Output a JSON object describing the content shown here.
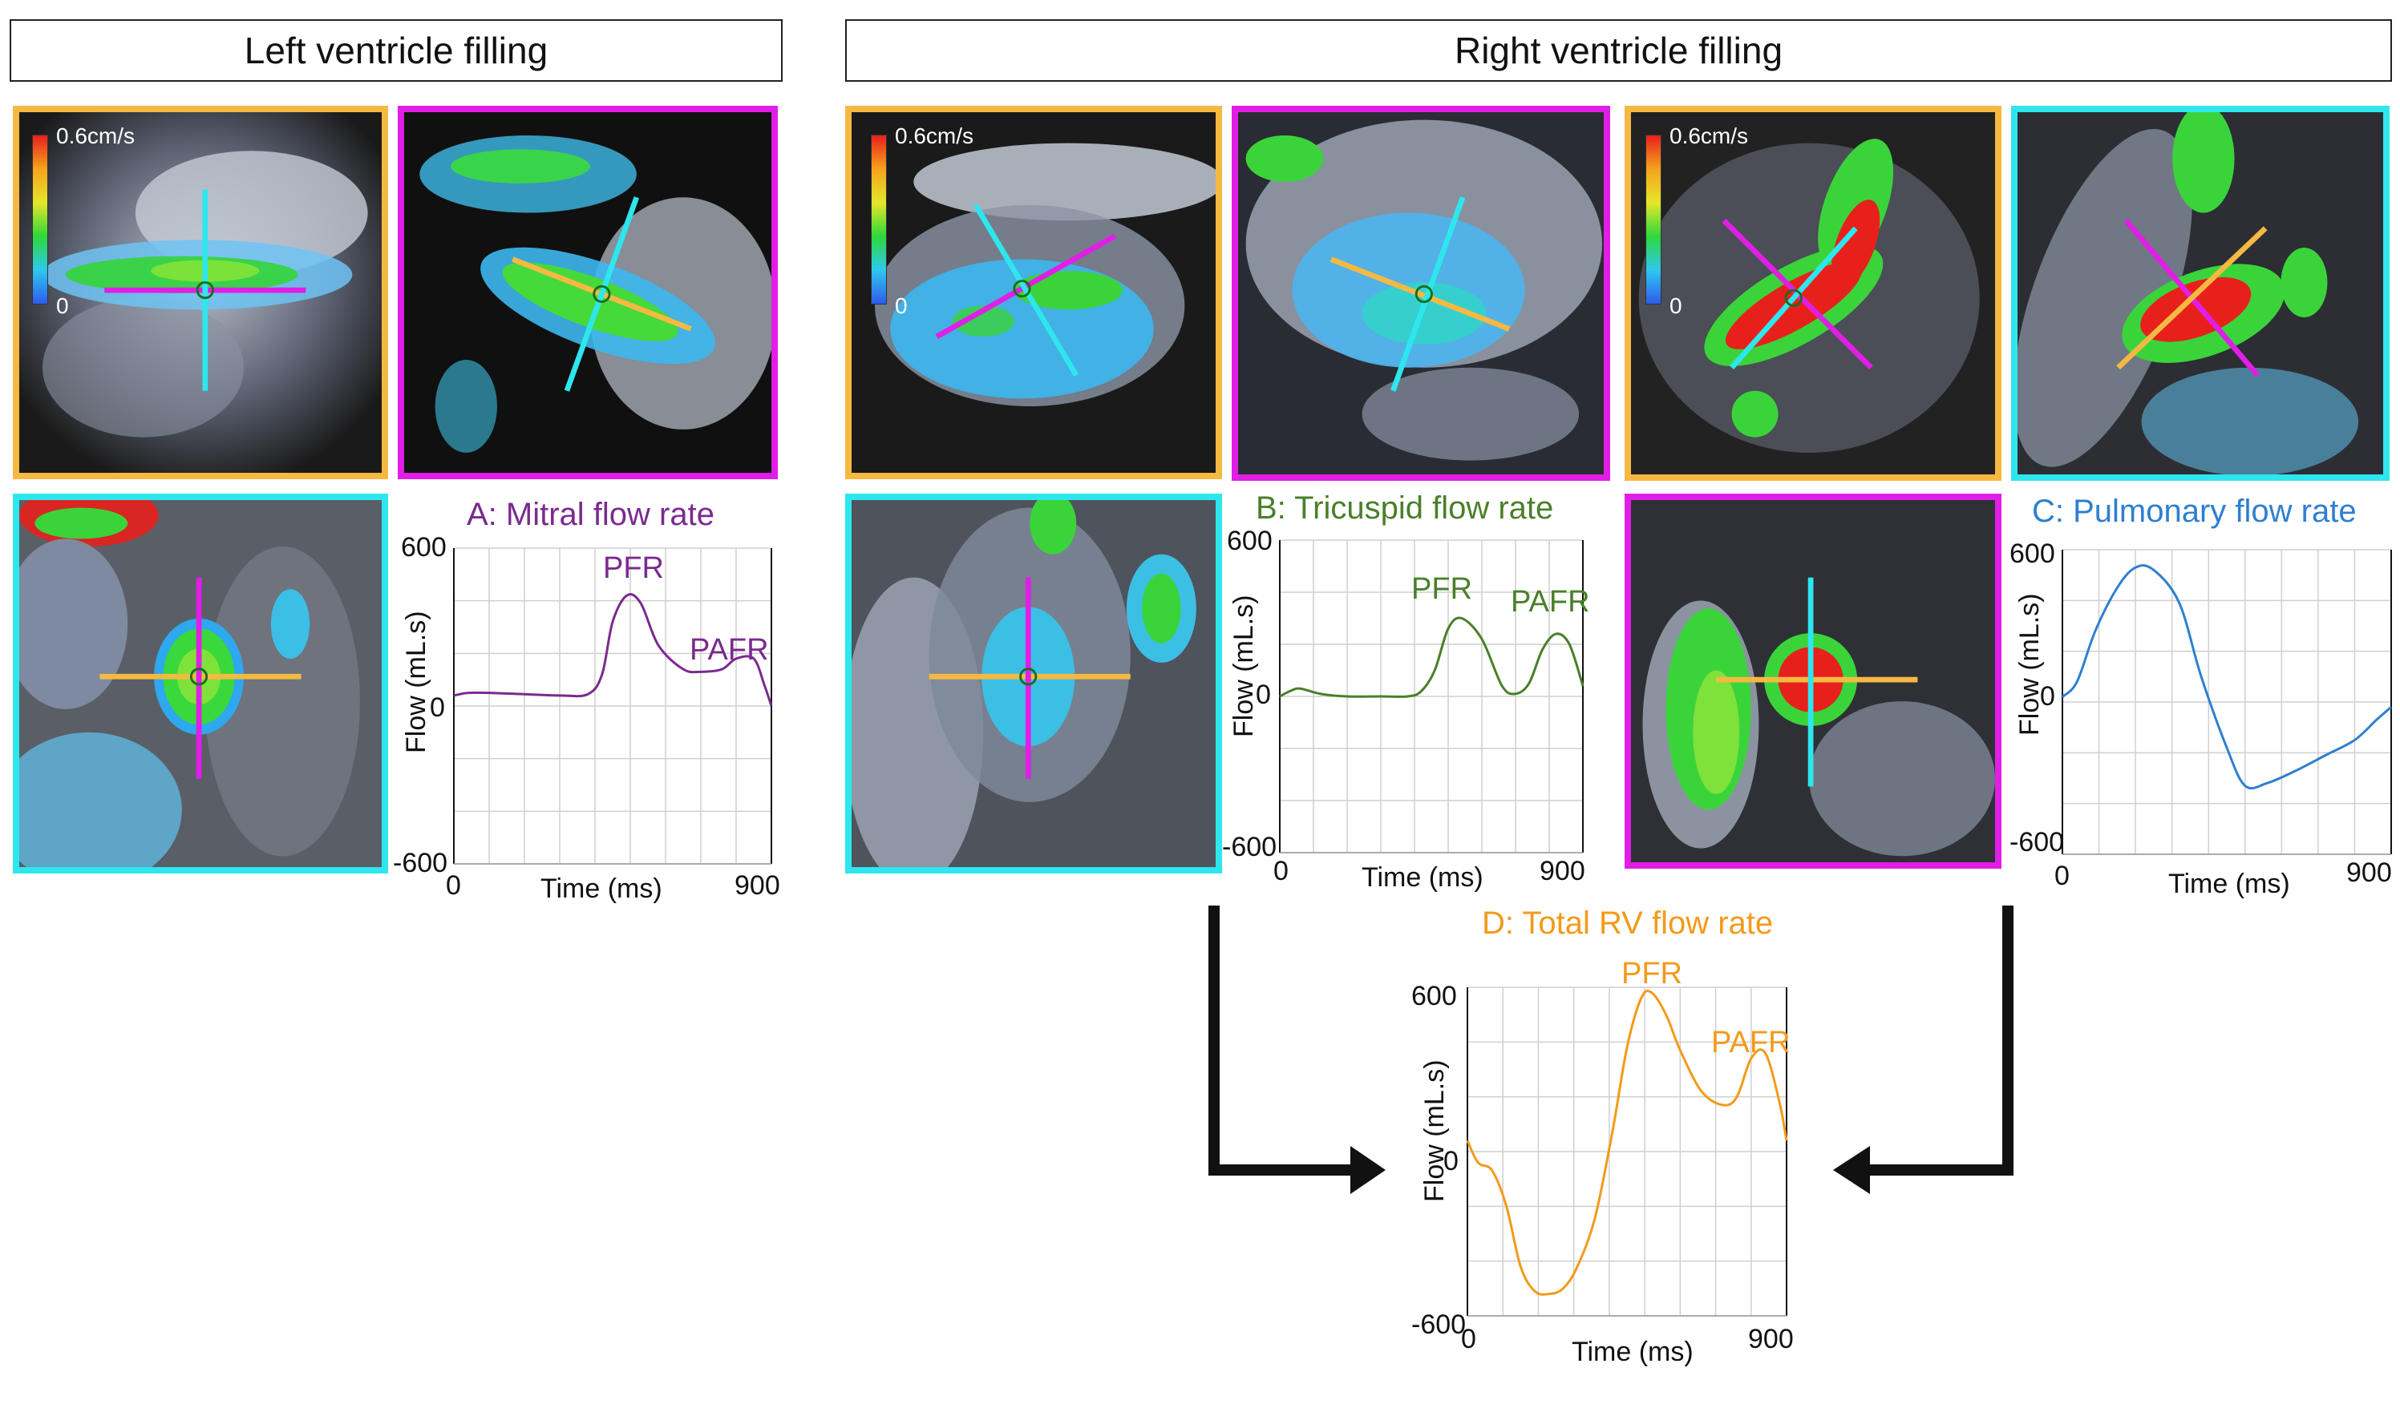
{
  "headers": {
    "left": "Left ventricle filling",
    "right": "Right ventricle filling"
  },
  "colors": {
    "orange_frame": "#f5b942",
    "magenta_frame": "#e11ee6",
    "cyan_frame": "#2ee6ee",
    "mitral": "#7b2a8f",
    "tricuspid": "#4a7f2a",
    "pulmonary": "#2e7fd1",
    "total_rv": "#f39a1a"
  },
  "colorbar": {
    "max": "0.6cm/s",
    "min": "0"
  },
  "graphs": {
    "A": {
      "title": "A: Mitral flow rate",
      "ymax": "600",
      "yzero": "0",
      "ymin": "-600",
      "xmin": "0",
      "xmax": "900",
      "xlabel": "Time (ms)",
      "ylabel": "Flow (mL.s)",
      "peaks": [
        "PFR",
        "PAFR"
      ]
    },
    "B": {
      "title": "B: Tricuspid flow rate",
      "ymax": "600",
      "yzero": "0",
      "ymin": "-600",
      "xmin": "0",
      "xmax": "900",
      "xlabel": "Time (ms)",
      "ylabel": "Flow (mL.s)",
      "peaks": [
        "PFR",
        "PAFR"
      ]
    },
    "C": {
      "title": "C: Pulmonary flow rate",
      "ymax": "600",
      "yzero": "0",
      "ymin": "-600",
      "xmin": "0",
      "xmax": "900",
      "xlabel": "Time (ms)",
      "ylabel": "Flow (mL.s)"
    },
    "D": {
      "title": "D: Total RV flow rate",
      "ymax": "600",
      "yzero": "0",
      "ymin": "-600",
      "xmin": "0",
      "xmax": "900",
      "xlabel": "Time (ms)",
      "ylabel": "Flow (mL.s)",
      "peaks": [
        "PFR",
        "PAFR"
      ]
    }
  },
  "chart_data": [
    {
      "type": "line",
      "title": "A: Mitral flow rate",
      "xlabel": "Time (ms)",
      "ylabel": "Flow (mL.s)",
      "xlim": [
        0,
        900
      ],
      "ylim": [
        -600,
        600
      ],
      "series": [
        {
          "x": [
            0,
            40,
            100,
            200,
            300,
            380,
            420,
            450,
            490,
            530,
            580,
            650,
            700,
            760,
            800,
            850,
            880,
            900
          ],
          "y": [
            40,
            50,
            50,
            45,
            40,
            45,
            120,
            320,
            420,
            390,
            230,
            140,
            130,
            140,
            180,
            180,
            80,
            0
          ]
        }
      ]
    },
    {
      "type": "line",
      "title": "B: Tricuspid flow rate",
      "xlabel": "Time (ms)",
      "ylabel": "Flow (mL.s)",
      "xlim": [
        0,
        900
      ],
      "ylim": [
        -600,
        600
      ],
      "series": [
        {
          "x": [
            0,
            30,
            60,
            120,
            200,
            300,
            380,
            420,
            460,
            500,
            540,
            600,
            660,
            700,
            740,
            780,
            820,
            860,
            900
          ],
          "y": [
            0,
            20,
            30,
            10,
            0,
            0,
            0,
            20,
            100,
            260,
            300,
            220,
            40,
            10,
            50,
            180,
            240,
            200,
            40
          ]
        }
      ]
    },
    {
      "type": "line",
      "title": "C: Pulmonary flow rate",
      "xlabel": "Time (ms)",
      "ylabel": "Flow (mL.s)",
      "xlim": [
        0,
        900
      ],
      "ylim": [
        -600,
        600
      ],
      "series": [
        {
          "x": [
            0,
            40,
            90,
            150,
            200,
            250,
            320,
            380,
            450,
            500,
            560,
            640,
            720,
            800,
            860,
            900
          ],
          "y": [
            20,
            80,
            280,
            450,
            530,
            520,
            390,
            100,
            -180,
            -330,
            -320,
            -270,
            -210,
            -150,
            -70,
            -20
          ]
        }
      ]
    },
    {
      "type": "line",
      "title": "D: Total RV flow rate",
      "xlabel": "Time (ms)",
      "ylabel": "Flow (mL.s)",
      "xlim": [
        0,
        900
      ],
      "ylim": [
        -600,
        600
      ],
      "series": [
        {
          "x": [
            0,
            30,
            70,
            110,
            150,
            190,
            230,
            270,
            310,
            360,
            410,
            450,
            490,
            520,
            560,
            600,
            660,
            720,
            760,
            800,
            840,
            880,
            900
          ],
          "y": [
            40,
            -40,
            -70,
            -200,
            -420,
            -510,
            -520,
            -500,
            -420,
            -240,
            80,
            380,
            560,
            580,
            500,
            370,
            220,
            170,
            200,
            340,
            360,
            180,
            40
          ]
        }
      ]
    }
  ]
}
